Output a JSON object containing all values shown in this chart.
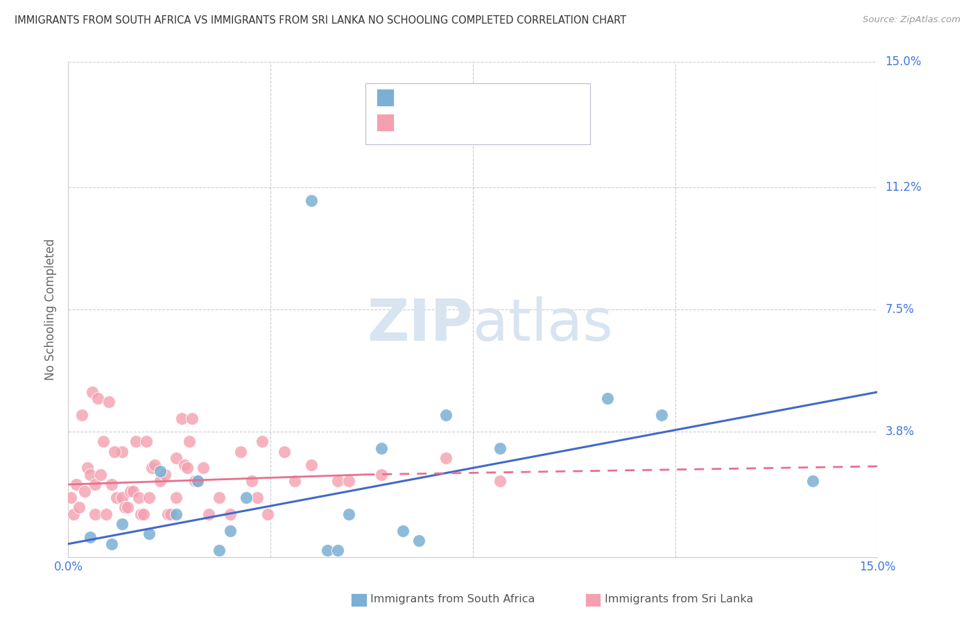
{
  "title": "IMMIGRANTS FROM SOUTH AFRICA VS IMMIGRANTS FROM SRI LANKA NO SCHOOLING COMPLETED CORRELATION CHART",
  "source": "Source: ZipAtlas.com",
  "ylabel": "No Schooling Completed",
  "xlim": [
    0.0,
    15.0
  ],
  "ylim": [
    0.0,
    15.0
  ],
  "yticks": [
    0.0,
    3.8,
    7.5,
    11.2,
    15.0
  ],
  "ytick_labels": [
    "",
    "3.8%",
    "7.5%",
    "11.2%",
    "15.0%"
  ],
  "xticks": [
    0.0,
    3.75,
    7.5,
    11.25,
    15.0
  ],
  "xtick_labels": [
    "0.0%",
    "",
    "",
    "",
    "15.0%"
  ],
  "watermark_zip": "ZIP",
  "watermark_atlas": "atlas",
  "legend_label1": "Immigrants from South Africa",
  "legend_label2": "Immigrants from Sri Lanka",
  "blue_scatter_color": "#7BAFD4",
  "pink_scatter_color": "#F4A0B0",
  "blue_line_color": "#4169CC",
  "pink_line_color": "#E87090",
  "axis_color": "#CCCCCC",
  "grid_color": "#CCCCCC",
  "label_color": "#4477DD",
  "title_color": "#333333",
  "source_color": "#999999",
  "ylabel_color": "#666666",
  "watermark_color": "#D8E4F0",
  "south_africa_x": [
    0.4,
    0.8,
    1.0,
    1.5,
    1.7,
    2.0,
    2.4,
    2.8,
    3.0,
    3.3,
    4.5,
    4.8,
    5.2,
    5.8,
    6.2,
    7.0,
    8.0,
    10.0,
    11.0,
    13.8,
    6.5,
    5.0
  ],
  "south_africa_y": [
    0.6,
    0.4,
    1.0,
    0.7,
    2.6,
    1.3,
    2.3,
    0.2,
    0.8,
    1.8,
    10.8,
    0.2,
    1.3,
    3.3,
    0.8,
    4.3,
    3.3,
    4.8,
    4.3,
    2.3,
    0.5,
    0.2
  ],
  "sri_lanka_x": [
    0.05,
    0.1,
    0.15,
    0.2,
    0.3,
    0.35,
    0.4,
    0.5,
    0.5,
    0.6,
    0.7,
    0.8,
    0.9,
    1.0,
    1.0,
    1.05,
    1.1,
    1.15,
    1.2,
    1.3,
    1.35,
    1.4,
    1.5,
    1.55,
    1.6,
    1.7,
    1.8,
    1.85,
    1.9,
    2.0,
    2.0,
    2.1,
    2.15,
    2.2,
    2.3,
    2.35,
    2.4,
    2.5,
    2.6,
    2.8,
    3.0,
    3.2,
    3.4,
    3.5,
    3.6,
    3.7,
    4.0,
    4.2,
    4.5,
    5.0,
    5.2,
    5.8,
    7.0,
    8.0,
    0.25,
    0.45,
    0.55,
    0.65,
    0.75,
    0.85,
    1.25,
    1.45,
    2.25
  ],
  "sri_lanka_y": [
    1.8,
    1.3,
    2.2,
    1.5,
    2.0,
    2.7,
    2.5,
    1.3,
    2.2,
    2.5,
    1.3,
    2.2,
    1.8,
    1.8,
    3.2,
    1.5,
    1.5,
    2.0,
    2.0,
    1.8,
    1.3,
    1.3,
    1.8,
    2.7,
    2.8,
    2.3,
    2.5,
    1.3,
    1.3,
    1.8,
    3.0,
    4.2,
    2.8,
    2.7,
    4.2,
    2.3,
    2.3,
    2.7,
    1.3,
    1.8,
    1.3,
    3.2,
    2.3,
    1.8,
    3.5,
    1.3,
    3.2,
    2.3,
    2.8,
    2.3,
    2.3,
    2.5,
    3.0,
    2.3,
    4.3,
    5.0,
    4.8,
    3.5,
    4.7,
    3.2,
    3.5,
    3.5,
    3.5
  ],
  "blue_line_x0": 0.0,
  "blue_line_y0": 0.4,
  "blue_line_x1": 15.0,
  "blue_line_y1": 5.0,
  "pink_solid_x0": 0.0,
  "pink_solid_y0": 2.2,
  "pink_solid_x1": 5.5,
  "pink_solid_y1": 2.5,
  "pink_dash_x0": 5.5,
  "pink_dash_y0": 2.5,
  "pink_dash_x1": 15.0,
  "pink_dash_y1": 2.75
}
